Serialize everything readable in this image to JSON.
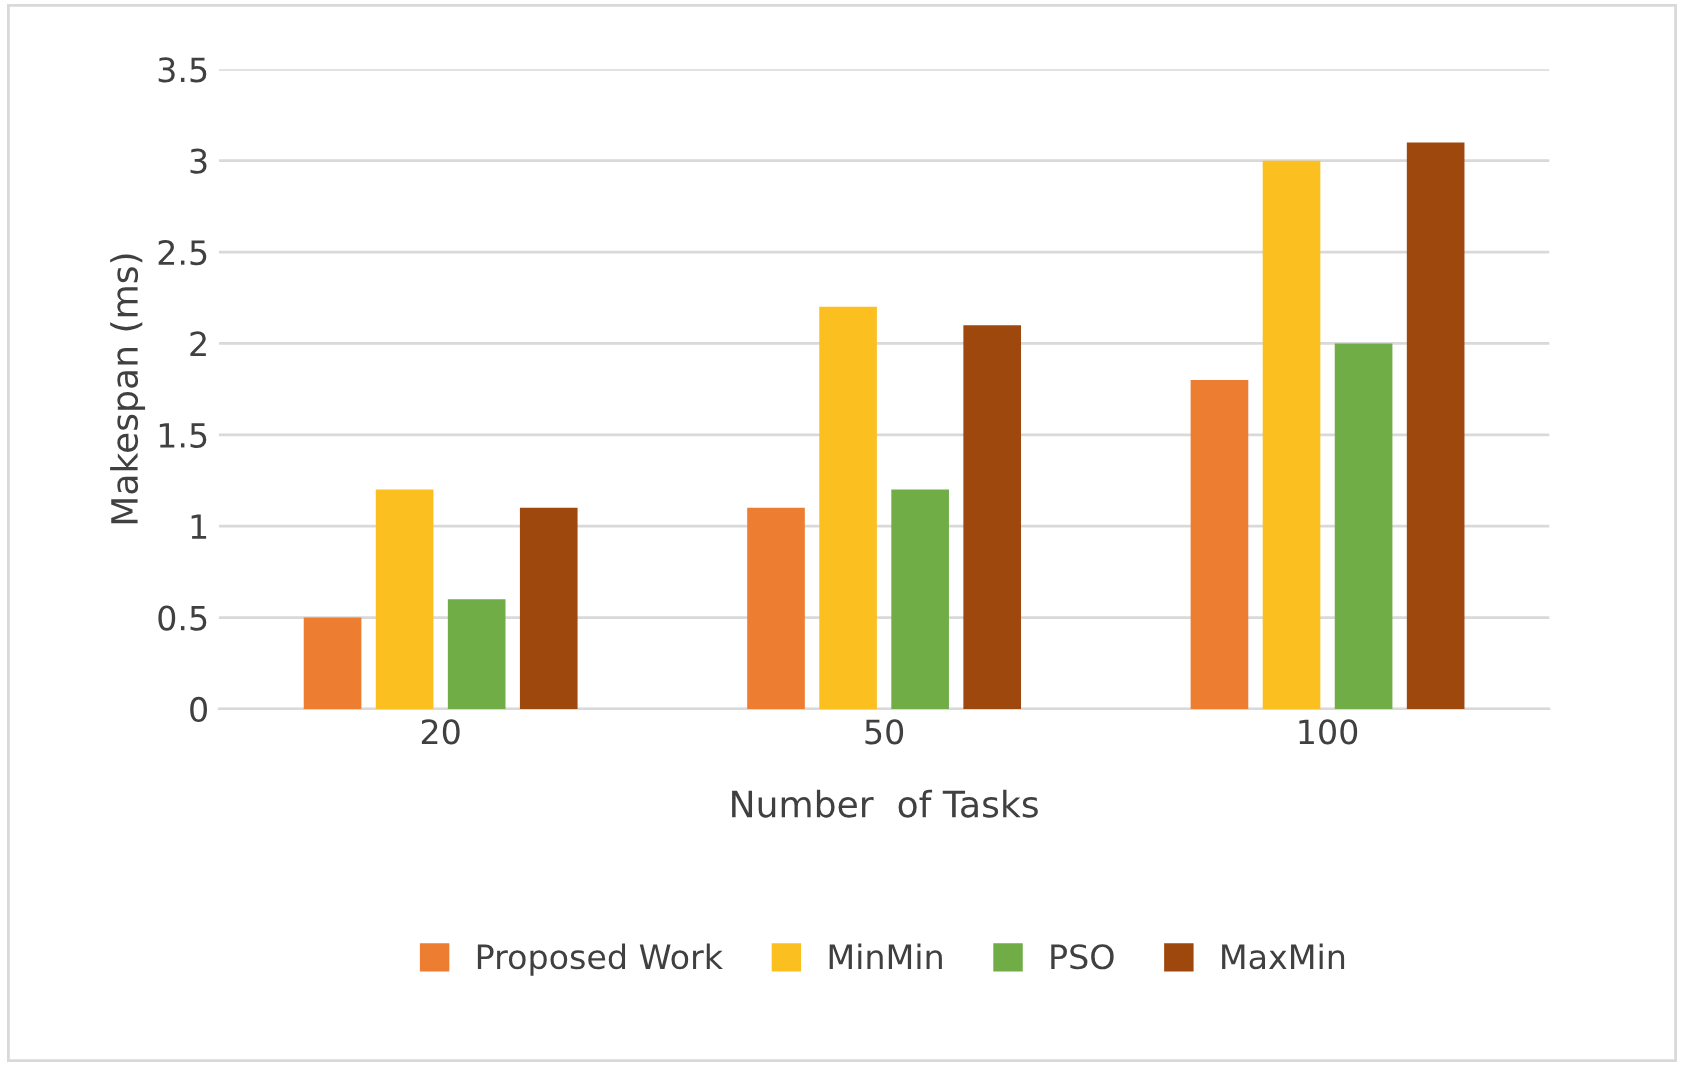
{
  "chart_data": {
    "type": "bar",
    "xlabel": "Number  of Tasks",
    "ylabel": "Makespan (ms)",
    "categories": [
      "20",
      "50",
      "100"
    ],
    "series": [
      {
        "name": "Proposed Work",
        "color": "#ed7d31",
        "values": [
          0.5,
          1.1,
          1.8
        ]
      },
      {
        "name": "MinMin",
        "color": "#fbc020",
        "values": [
          1.2,
          2.2,
          3.0
        ]
      },
      {
        "name": "PSO",
        "color": "#70ad47",
        "values": [
          0.6,
          1.2,
          2.0
        ]
      },
      {
        "name": "MaxMin",
        "color": "#9e480e",
        "values": [
          1.1,
          2.1,
          3.1
        ]
      }
    ],
    "ylim": [
      0,
      3.5
    ],
    "yticks": [
      0,
      0.5,
      1,
      1.5,
      2,
      2.5,
      3,
      3.5
    ],
    "grid": "y",
    "legend": "bottom"
  }
}
